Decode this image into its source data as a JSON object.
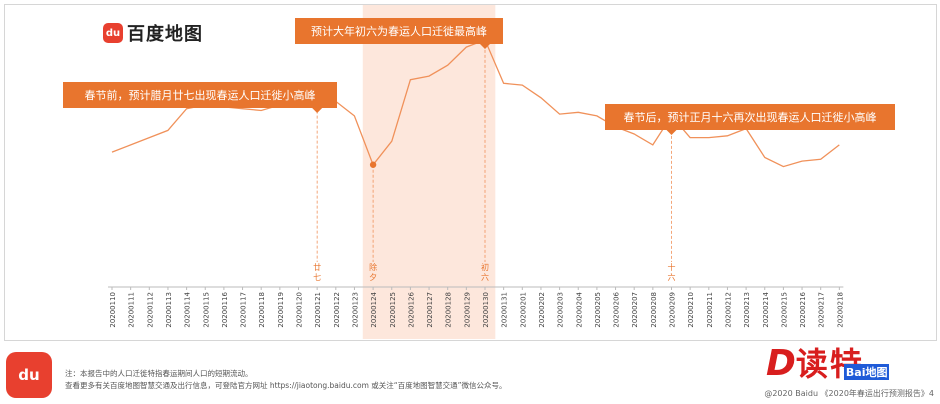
{
  "brand": {
    "name": "百度地图",
    "badge": "du"
  },
  "chart_data": {
    "type": "line",
    "categories": [
      "20200110",
      "20200111",
      "20200112",
      "20200113",
      "20200114",
      "20200115",
      "20200116",
      "20200117",
      "20200118",
      "20200119",
      "20200120",
      "20200121",
      "20200122",
      "20200123",
      "20200124",
      "20200125",
      "20200126",
      "20200127",
      "20200128",
      "20200129",
      "20200130",
      "20200131",
      "20200201",
      "20200202",
      "20200203",
      "20200204",
      "20200205",
      "20200206",
      "20200207",
      "20200208",
      "20200209",
      "20200210",
      "20200211",
      "20200212",
      "20200213",
      "20200214",
      "20200215",
      "20200216",
      "20200217",
      "20200218"
    ],
    "series": [
      {
        "values": [
          52,
          56,
          60,
          64,
          76,
          78,
          77,
          76,
          75,
          78,
          82,
          86,
          80,
          72,
          45,
          58,
          92,
          94,
          100,
          110,
          114,
          90,
          89,
          82,
          73,
          74,
          72,
          66,
          62,
          56,
          72,
          60,
          60,
          61,
          65,
          49,
          44,
          47,
          48,
          56
        ]
      }
    ],
    "ylim": [
      20,
      125
    ],
    "shaded_range": [
      "20200124",
      "20200130"
    ],
    "line_color": "#f0915a",
    "shade_color": "#fde7dc",
    "callout_color": "#e8752e",
    "markers": [
      {
        "category": "20200121",
        "label": "廿\n七",
        "note": "春节前，预计腊月廿七出现春运人口迁徙小高峰"
      },
      {
        "category": "20200124",
        "label": "除\n夕",
        "note": ""
      },
      {
        "category": "20200130",
        "label": "初\n六",
        "note": "预计大年初六为春运人口迁徙最高峰"
      },
      {
        "category": "20200209",
        "label": "十\n六",
        "note": "春节后，预计正月十六再次出现春运人口迁徙小高峰"
      }
    ]
  },
  "footer": {
    "badge": "du",
    "note1": "注：本报告中的人口迁徙特指春运期间人口的短期流动。",
    "note2": "查看更多有关百度地图智慧交通及出行信息，可登陆官方网址 https://jiaotong.baidu.com 或关注“百度地图智慧交通”微信公众号。",
    "copyright": "@2020 Baidu 《2020年春运出行预测报告》4"
  },
  "watermark": {
    "letter": "D",
    "text": "读特",
    "tag": "Bai地图"
  }
}
